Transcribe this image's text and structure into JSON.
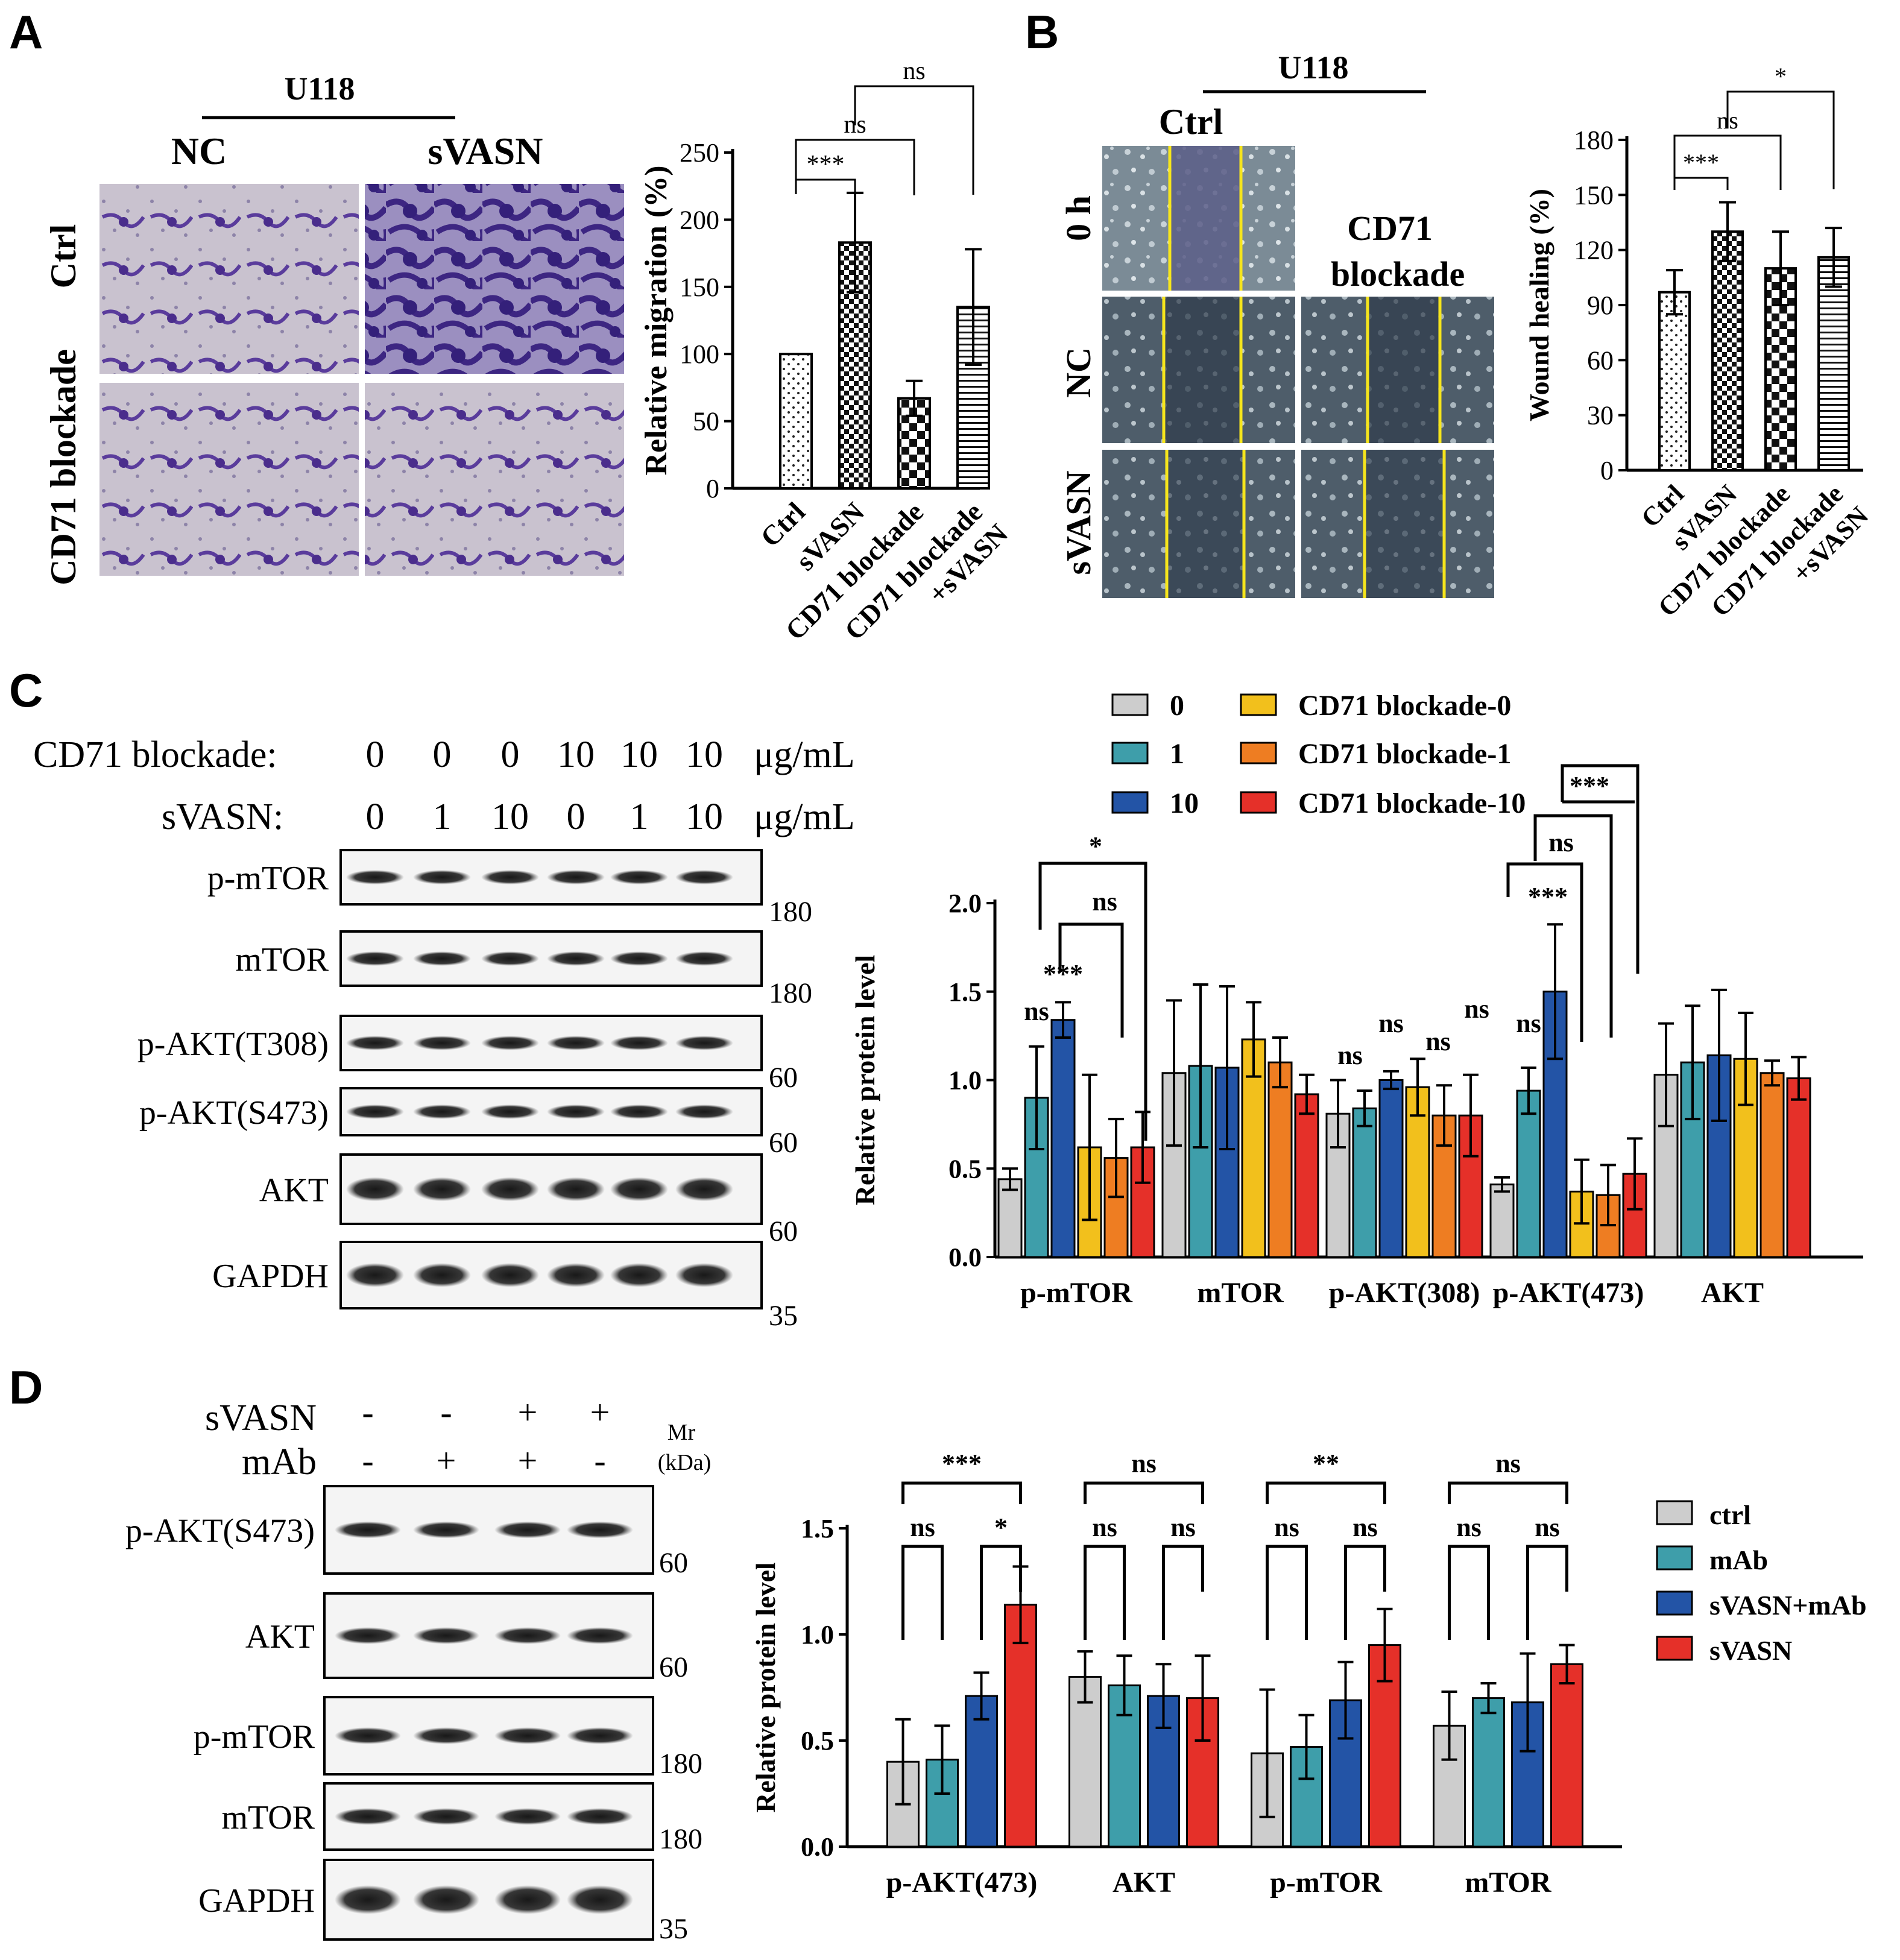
{
  "panels": {
    "A": {
      "letter": "A",
      "cell_line": "U118",
      "col_labels": [
        "NC",
        "sVASN"
      ],
      "row_labels": [
        "Ctrl",
        "CD71 blockade"
      ]
    },
    "B": {
      "letter": "B",
      "cell_line": "U118",
      "ctrl_label": "Ctrl",
      "cd71_label_1": "CD71",
      "cd71_label_2": "blockade",
      "row_labels": [
        "0 h",
        "NC",
        "sVASN"
      ]
    },
    "C": {
      "letter": "C",
      "cd71_label": "CD71 blockade:",
      "cd71_values": [
        "0",
        "0",
        "0",
        "10",
        "10",
        "10"
      ],
      "svasn_label": "sVASN:",
      "svasn_values": [
        "0",
        "1",
        "10",
        "0",
        "1",
        "10"
      ],
      "unit": "μg/mL",
      "blots": [
        {
          "name": "p-mTOR",
          "mw": "180"
        },
        {
          "name": "mTOR",
          "mw": "180"
        },
        {
          "name": "p-AKT(T308)",
          "mw": "60"
        },
        {
          "name": "p-AKT(S473)",
          "mw": "60"
        },
        {
          "name": "AKT",
          "mw": "60"
        },
        {
          "name": "GAPDH",
          "mw": "35"
        }
      ]
    },
    "D": {
      "letter": "D",
      "svasn_label": "sVASN",
      "svasn_signs": [
        "-",
        "-",
        "+",
        "+"
      ],
      "mab_label": "mAb",
      "mab_signs": [
        "-",
        "+",
        "+",
        "-"
      ],
      "mr_1": "Mr",
      "mr_2": "(kDa)",
      "blots": [
        {
          "name": "p-AKT(S473)",
          "mw": "60"
        },
        {
          "name": "AKT",
          "mw": "60"
        },
        {
          "name": "p-mTOR",
          "mw": "180"
        },
        {
          "name": "mTOR",
          "mw": "180"
        },
        {
          "name": "GAPDH",
          "mw": "35"
        }
      ]
    }
  },
  "chart_data": [
    {
      "id": "A",
      "type": "bar",
      "ylabel": "Relative migration (%)",
      "ylim": [
        0,
        250
      ],
      "yticks": [
        0,
        50,
        100,
        150,
        200,
        250
      ],
      "categories": [
        "Ctrl",
        "sVASN",
        "CD71 blockade",
        "CD71 blockade\n+sVASN"
      ],
      "values": [
        100,
        183,
        67,
        135
      ],
      "errors": [
        0,
        37,
        13,
        43
      ],
      "patterns": [
        "dots",
        "checker-small",
        "checker-large",
        "hlines"
      ],
      "annotations": [
        {
          "from": 0,
          "to": 1,
          "text": "***"
        },
        {
          "from": 0,
          "to": 2,
          "text": "ns"
        },
        {
          "from": 1,
          "to": 3,
          "text": "ns"
        }
      ]
    },
    {
      "id": "B",
      "type": "bar",
      "ylabel": "Wound healing (%)",
      "ylim": [
        0,
        180
      ],
      "yticks": [
        0,
        30,
        60,
        90,
        120,
        150,
        180
      ],
      "categories": [
        "Ctrl",
        "sVASN",
        "CD71 blockade",
        "CD71 blockade\n+sVASN"
      ],
      "values": [
        97,
        130,
        110,
        116
      ],
      "errors": [
        12,
        16,
        20,
        16
      ],
      "patterns": [
        "dots",
        "checker-small",
        "checker-large",
        "hlines"
      ],
      "annotations": [
        {
          "from": 0,
          "to": 1,
          "text": "***"
        },
        {
          "from": 0,
          "to": 2,
          "text": "ns"
        },
        {
          "from": 1,
          "to": 3,
          "text": "*"
        }
      ]
    },
    {
      "id": "C",
      "type": "bar",
      "ylabel": "Relative protein level",
      "ylim": [
        0,
        2.0
      ],
      "yticks": [
        "0.0",
        "0.5",
        "1.0",
        "1.5",
        "2.0"
      ],
      "categories": [
        "p-mTOR",
        "mTOR",
        "p-AKT(308)",
        "p-AKT(473)",
        "AKT"
      ],
      "series": [
        {
          "name": "0",
          "color": "#cdcdcd",
          "values": [
            0.44,
            1.04,
            0.81,
            0.41,
            1.03
          ],
          "errors": [
            0.06,
            0.41,
            0.19,
            0.04,
            0.29
          ]
        },
        {
          "name": "1",
          "color": "#3e9eaa",
          "values": [
            0.9,
            1.08,
            0.84,
            0.94,
            1.1
          ],
          "errors": [
            0.29,
            0.46,
            0.1,
            0.13,
            0.32
          ]
        },
        {
          "name": "10",
          "color": "#2354a6",
          "values": [
            1.34,
            1.07,
            1.0,
            1.5,
            1.14
          ],
          "errors": [
            0.1,
            0.46,
            0.05,
            0.38,
            0.37
          ]
        },
        {
          "name": "CD71 blockade-0",
          "color": "#f2c01c",
          "values": [
            0.62,
            1.23,
            0.96,
            0.37,
            1.12
          ],
          "errors": [
            0.41,
            0.21,
            0.16,
            0.18,
            0.26
          ]
        },
        {
          "name": "CD71 blockade-1",
          "color": "#ee7d22",
          "values": [
            0.56,
            1.1,
            0.8,
            0.35,
            1.04
          ],
          "errors": [
            0.22,
            0.14,
            0.17,
            0.17,
            0.07
          ]
        },
        {
          "name": "CD71 blockade-10",
          "color": "#e53029",
          "values": [
            0.62,
            0.92,
            0.8,
            0.47,
            1.01
          ],
          "errors": [
            0.2,
            0.11,
            0.23,
            0.2,
            0.12
          ]
        }
      ],
      "group_annotations": [
        {
          "group": 0,
          "labels": [
            "ns",
            "***"
          ]
        },
        {
          "group": 2,
          "labels": [
            "ns",
            "ns",
            "ns",
            "ns"
          ]
        },
        {
          "group": 3,
          "labels": [
            "ns"
          ]
        }
      ],
      "brackets": [
        {
          "group": 0,
          "from": 2,
          "to": 3,
          "text": "ns"
        },
        {
          "group": 0,
          "from": 2,
          "to": 5,
          "text": "*"
        },
        {
          "group": 3,
          "from": 1,
          "to": 2,
          "text": "***"
        },
        {
          "group": 3,
          "from": 2,
          "to": 4,
          "text": "ns"
        },
        {
          "group": 3,
          "from": 2,
          "to": 5,
          "text": "***"
        }
      ],
      "legend": "top"
    },
    {
      "id": "D",
      "type": "bar",
      "ylabel": "Relative protein level",
      "ylim": [
        0,
        1.5
      ],
      "yticks": [
        "0.0",
        "0.5",
        "1.0",
        "1.5"
      ],
      "categories": [
        "p-AKT(473)",
        "AKT",
        "p-mTOR",
        "mTOR"
      ],
      "series": [
        {
          "name": "ctrl",
          "color": "#cdcdcd",
          "values": [
            0.4,
            0.8,
            0.44,
            0.57
          ],
          "errors": [
            0.2,
            0.12,
            0.3,
            0.16
          ]
        },
        {
          "name": "mAb",
          "color": "#3e9eaa",
          "values": [
            0.41,
            0.76,
            0.47,
            0.7
          ],
          "errors": [
            0.16,
            0.14,
            0.15,
            0.07
          ]
        },
        {
          "name": "sVASN+mAb",
          "color": "#2354a6",
          "values": [
            0.71,
            0.71,
            0.69,
            0.68
          ],
          "errors": [
            0.11,
            0.15,
            0.18,
            0.23
          ]
        },
        {
          "name": "sVASN",
          "color": "#e53029",
          "values": [
            1.14,
            0.7,
            0.95,
            0.86
          ],
          "errors": [
            0.18,
            0.2,
            0.17,
            0.09
          ]
        }
      ],
      "brackets": [
        {
          "group": 0,
          "labels": [
            "***",
            "ns",
            "*"
          ]
        },
        {
          "group": 1,
          "labels": [
            "ns",
            "ns",
            "ns"
          ]
        },
        {
          "group": 2,
          "labels": [
            "**",
            "ns",
            "ns"
          ]
        },
        {
          "group": 3,
          "labels": [
            "ns",
            "ns",
            "ns"
          ]
        }
      ],
      "legend": "right"
    }
  ]
}
